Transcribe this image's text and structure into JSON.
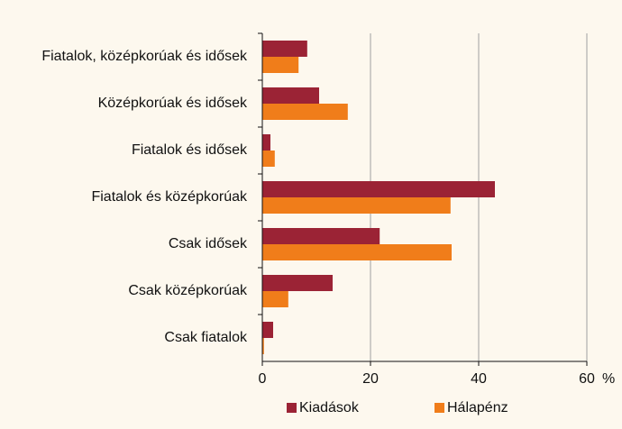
{
  "chart_data": {
    "type": "hbar",
    "categories": [
      "Fiatalok, középkorúak és idősek",
      "Középkorúak és idősek",
      "Fiatalok és idősek",
      "Fiatalok és középkorúak",
      "Csak idősek",
      "Csak középkorúak",
      "Csak fiatalok"
    ],
    "series": [
      {
        "name": "Kiadások",
        "color": "#9b2335",
        "values": [
          8.3,
          10.5,
          1.5,
          43,
          21.7,
          13,
          2
        ]
      },
      {
        "name": "Hálapénz",
        "color": "#f07d1a",
        "values": [
          6.7,
          15.8,
          2.3,
          34.8,
          35,
          4.8,
          0.3
        ]
      }
    ],
    "xlim": [
      0,
      60
    ],
    "xticks": [
      0,
      20,
      40,
      60
    ],
    "x_unit": "%",
    "grid": true,
    "legend": "bottom"
  }
}
